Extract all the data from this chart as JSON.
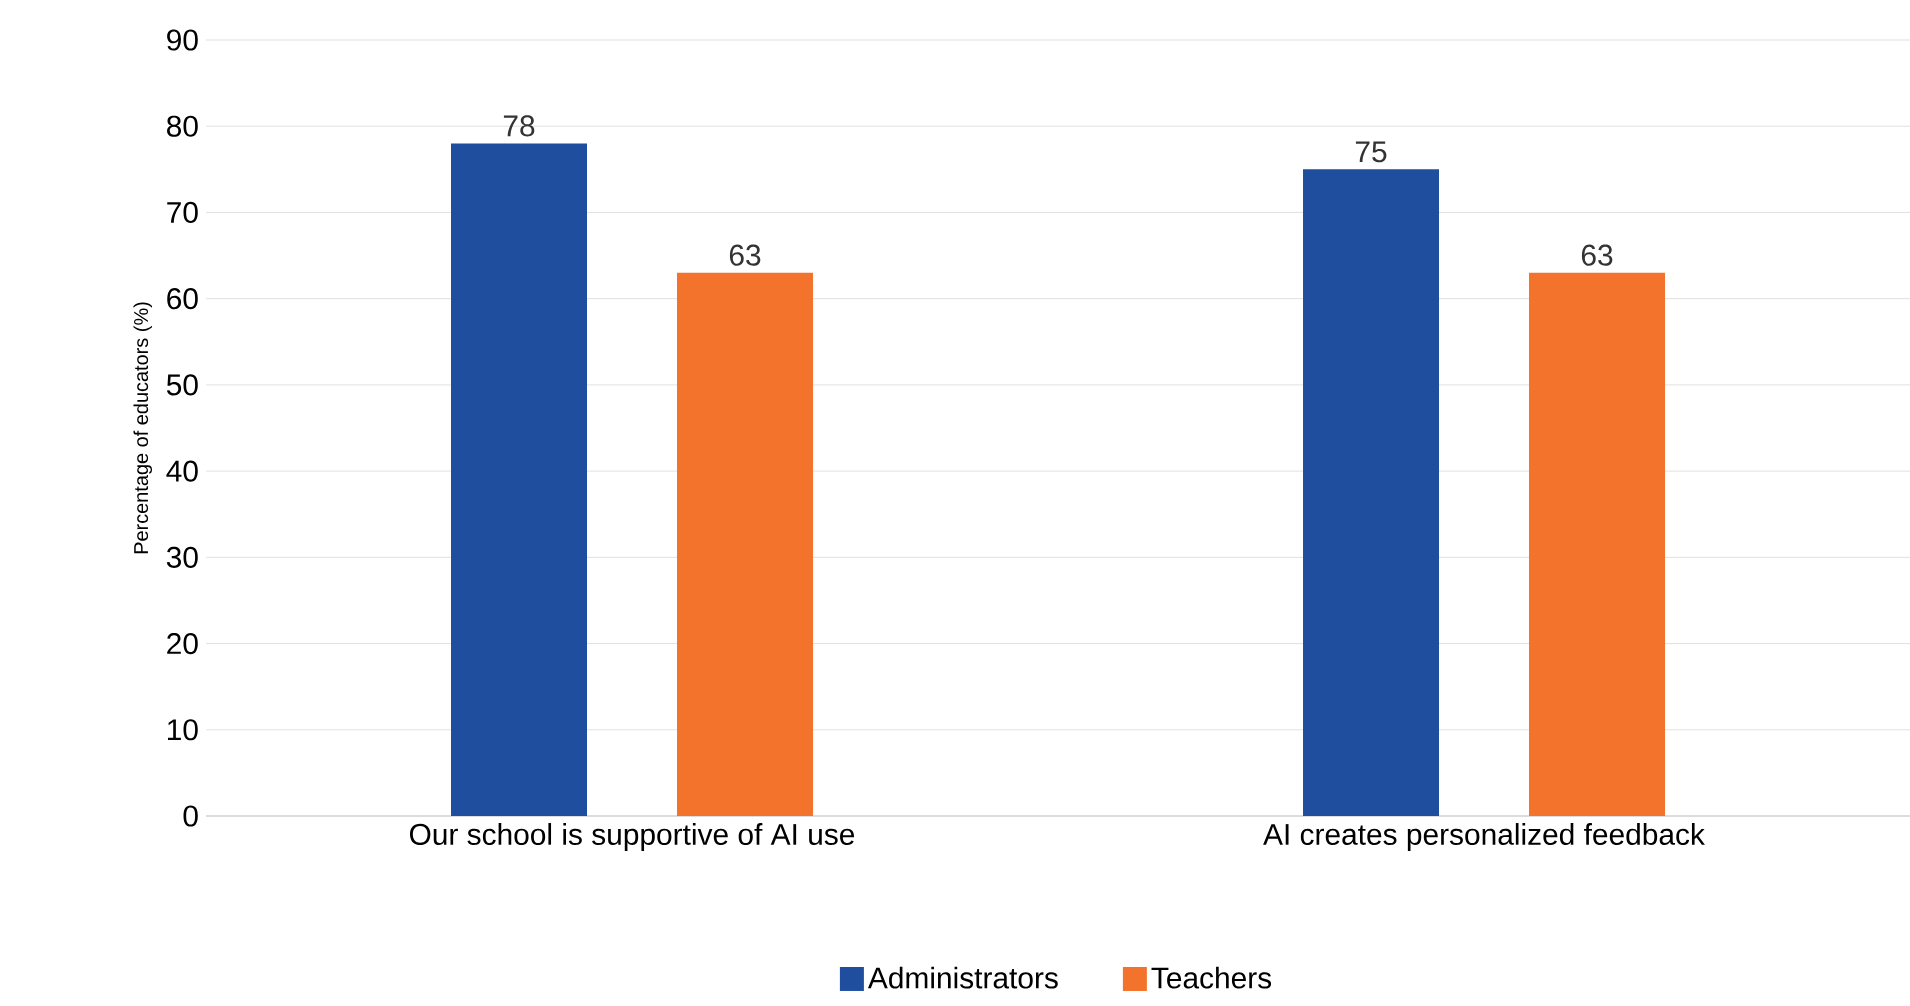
{
  "chart_data": {
    "type": "bar",
    "ylabel": "Percentage of educators (%)",
    "categories": [
      "Our school is supportive of AI use",
      "AI creates personalized feedback"
    ],
    "series": [
      {
        "name": "Administrators",
        "color": "#1f4e9f",
        "values": [
          78,
          75
        ]
      },
      {
        "name": "Teachers",
        "color": "#f3722c",
        "values": [
          63,
          63
        ]
      }
    ],
    "ylim": [
      0,
      90
    ],
    "yticks": [
      0,
      10,
      20,
      30,
      40,
      50,
      60,
      70,
      80,
      90
    ],
    "grid": "y",
    "legend": "bottom",
    "data_labels": true
  }
}
